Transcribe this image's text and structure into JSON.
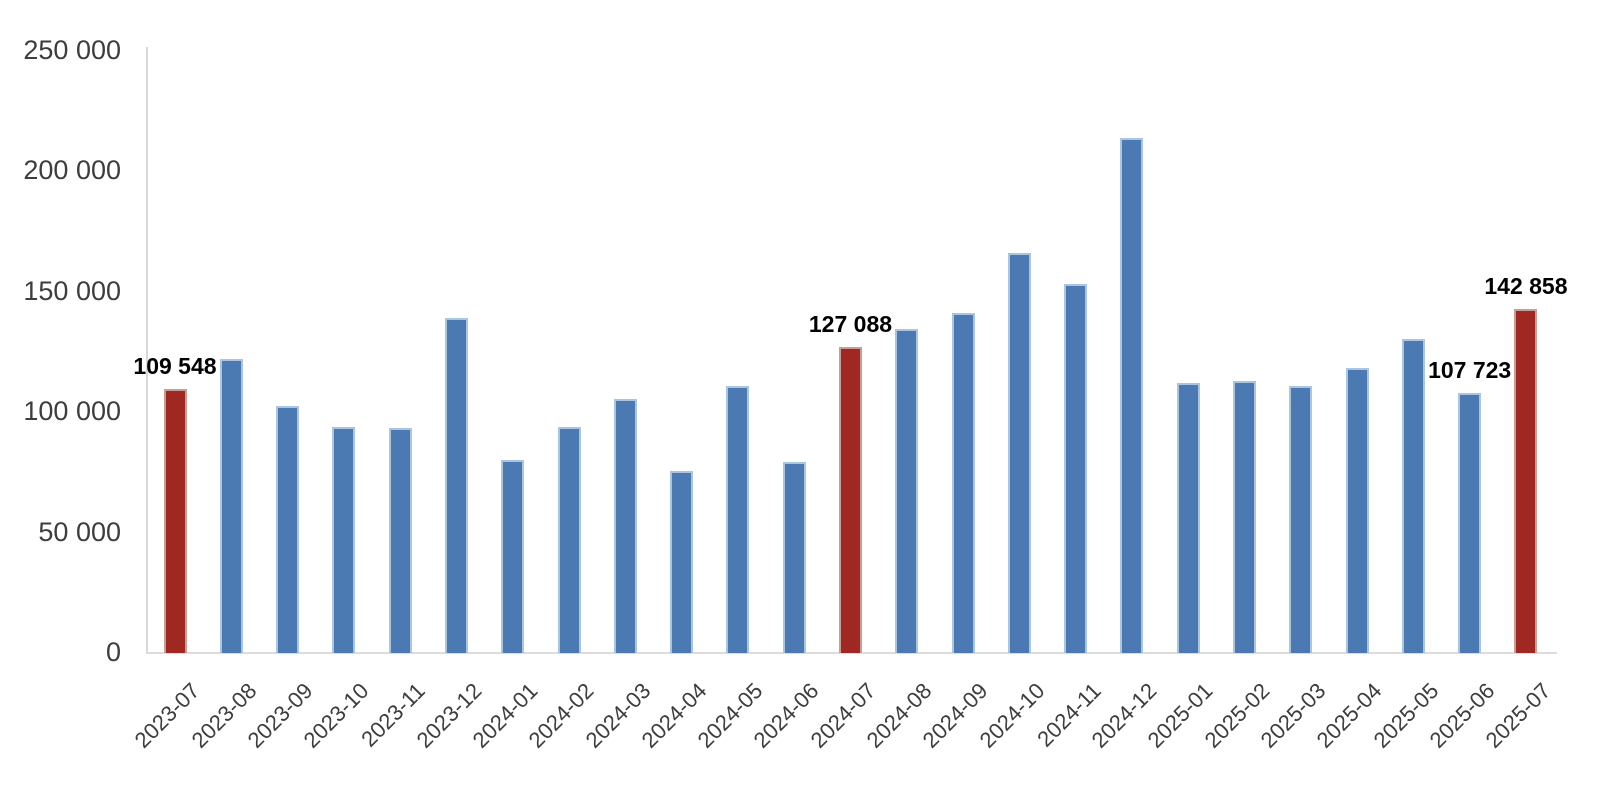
{
  "chart_data": {
    "type": "bar",
    "title": "",
    "legend": false,
    "grid": false,
    "categories": [
      "2023-07",
      "2023-08",
      "2023-09",
      "2023-10",
      "2023-11",
      "2023-12",
      "2024-01",
      "2024-02",
      "2024-03",
      "2024-04",
      "2024-05",
      "2024-06",
      "2024-07",
      "2024-08",
      "2024-09",
      "2024-10",
      "2024-11",
      "2024-12",
      "2025-01",
      "2025-02",
      "2025-03",
      "2025-04",
      "2025-05",
      "2025-06",
      "2025-07"
    ],
    "values": [
      109548,
      121900,
      102400,
      93700,
      93500,
      139100,
      79900,
      93900,
      105400,
      75500,
      110600,
      79100,
      127088,
      134300,
      141100,
      165800,
      153000,
      213500,
      112100,
      113000,
      110600,
      118200,
      130300,
      107723,
      142858
    ],
    "highlighted_categories": [
      "2023-07",
      "2024-07",
      "2025-07"
    ],
    "data_labels": {
      "2023-07": "109 548",
      "2024-07": "127 088",
      "2025-06": "107 723",
      "2025-07": "142 858"
    },
    "y_axis": {
      "min": 0,
      "max": 250000,
      "ticks": [
        {
          "label": "0",
          "value": 0
        },
        {
          "label": "50 000",
          "value": 50000
        },
        {
          "label": "100 000",
          "value": 100000
        },
        {
          "label": "150 000",
          "value": 150000
        },
        {
          "label": "200 000",
          "value": 200000
        },
        {
          "label": "250 000",
          "value": 250000
        }
      ]
    },
    "colors": {
      "bar": "#4b7ab2",
      "bar_border": "#abc4df",
      "highlight": "#a02823",
      "highlight_border": "#c79d98",
      "axis_line": "#d9d9d9",
      "tick_text": "#3d3d3d",
      "label_text": "#000000"
    }
  }
}
